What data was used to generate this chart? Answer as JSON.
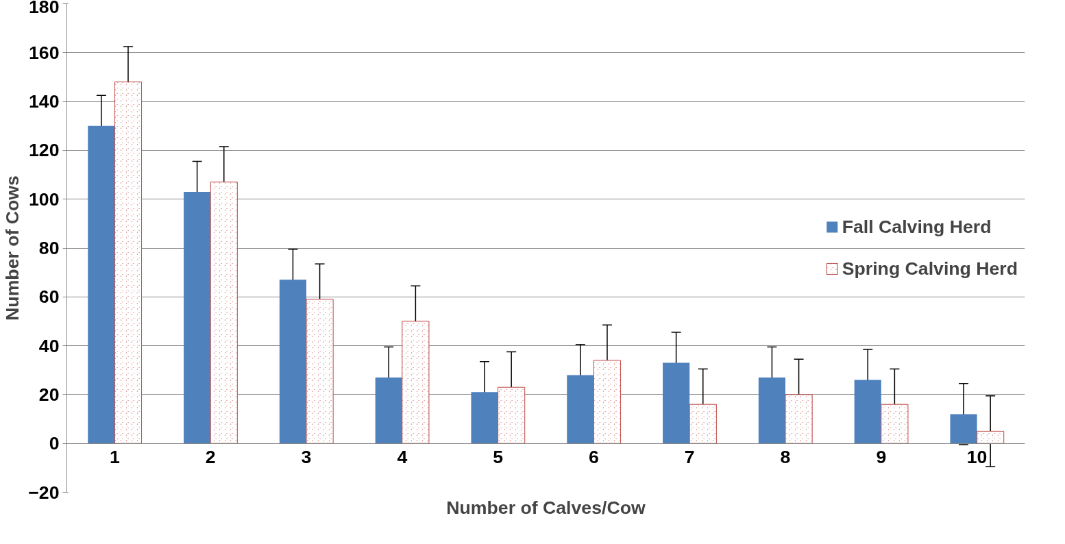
{
  "chart_data": {
    "type": "bar",
    "xlabel": "Number of Calves/Cow",
    "ylabel": "Number of Cows",
    "categories": [
      "1",
      "2",
      "3",
      "4",
      "5",
      "6",
      "7",
      "8",
      "9",
      "10"
    ],
    "series": [
      {
        "name": "Fall Calving Herd",
        "color": "#4f81bd",
        "values": [
          130,
          103,
          67,
          27,
          21,
          28,
          33,
          27,
          26,
          12
        ],
        "errors": [
          12.5,
          12.5,
          12.5,
          12.5,
          12.5,
          12.5,
          12.5,
          12.5,
          12.5,
          12.5
        ]
      },
      {
        "name": "Spring Calving Herd",
        "color": "#c0504d",
        "values": [
          148,
          107,
          59,
          50,
          23,
          34,
          16,
          20,
          16,
          5
        ],
        "errors": [
          14.5,
          14.5,
          14.5,
          14.5,
          14.5,
          14.5,
          14.5,
          14.5,
          14.5,
          14.5
        ]
      }
    ],
    "ylim": [
      -20,
      180
    ],
    "yticks": [
      -20,
      0,
      20,
      40,
      60,
      80,
      100,
      120,
      140,
      160,
      180
    ],
    "grid": "y",
    "legend": "right"
  }
}
